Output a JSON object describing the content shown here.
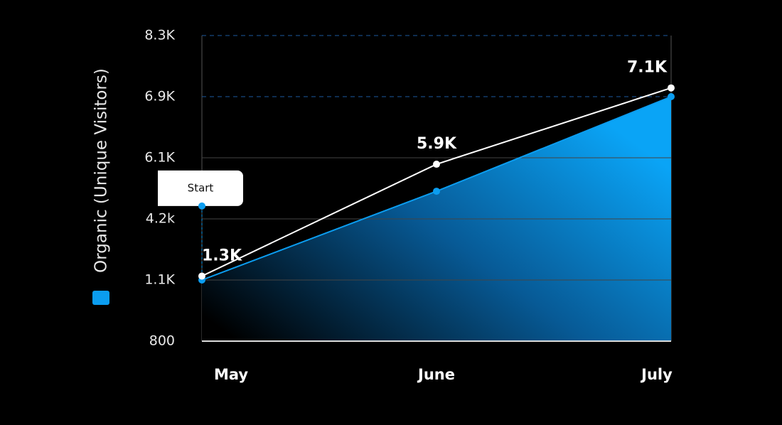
{
  "chart_data": {
    "type": "area",
    "y_label": "Organic (Unique Visitors)",
    "categories": [
      "May",
      "June",
      "July"
    ],
    "series": [
      {
        "name": "Organic (Unique Visitors)",
        "color": "#0b9df0",
        "values": [
          1100,
          5060,
          6900
        ]
      },
      {
        "color": "#ffffff",
        "values": [
          1300,
          5900,
          7100
        ],
        "value_labels": [
          "1.3K",
          "5.9K",
          "7.1K"
        ]
      }
    ],
    "annotations": [
      {
        "text": "Start",
        "x": "May",
        "value": 4600
      }
    ],
    "ylim": [
      800,
      8300
    ],
    "yticks": [
      {
        "value": 800,
        "label": "800"
      },
      {
        "value": 1100,
        "label": "1.1K"
      },
      {
        "value": 4200,
        "label": "4.2k"
      },
      {
        "value": 6100,
        "label": "6.1K"
      },
      {
        "value": 6900,
        "label": "6.9K"
      },
      {
        "value": 8300,
        "label": "8.3K"
      }
    ],
    "grid": true
  }
}
